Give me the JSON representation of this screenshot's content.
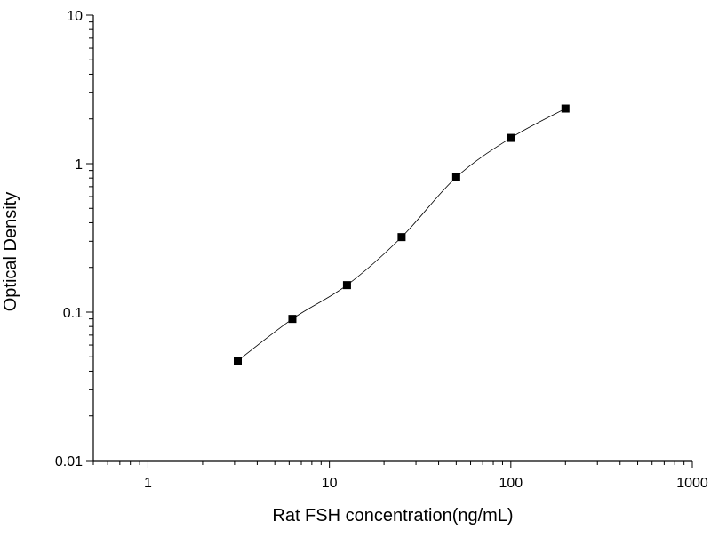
{
  "chart_data": {
    "type": "scatter",
    "title": "",
    "xlabel": "Rat FSH concentration(ng/mL)",
    "ylabel": "Optical Density",
    "x_scale": "log",
    "y_scale": "log",
    "xlim": [
      0.5,
      1000
    ],
    "ylim": [
      0.01,
      10
    ],
    "x_ticks": [
      "1",
      "10",
      "100",
      "1000"
    ],
    "y_ticks": [
      "0.01",
      "0.1",
      "1",
      "10"
    ],
    "grid": false,
    "legend": "none",
    "fit_curve": true,
    "marker": "square",
    "color": "#000000",
    "series": [
      {
        "x": [
          3.125,
          6.25,
          12.5,
          25,
          50,
          100,
          200
        ],
        "y": [
          0.047,
          0.09,
          0.152,
          0.32,
          0.81,
          1.49,
          2.35
        ]
      }
    ]
  }
}
